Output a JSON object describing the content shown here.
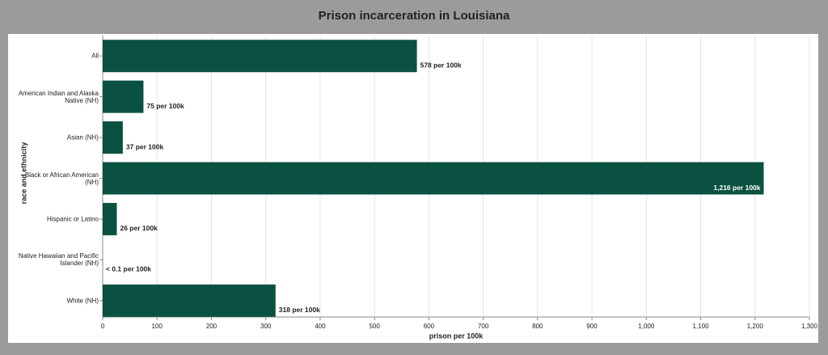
{
  "chart_data": {
    "type": "bar",
    "orientation": "horizontal",
    "title": "Prison incarceration in Louisiana",
    "x_label": "prison per 100k",
    "y_label": "race and ethnicity",
    "categories": [
      "All",
      "American Indian and Alaska Native (NH)",
      "Asian (NH)",
      "Black or African American (NH)",
      "Hispanic or Latino",
      "Native Hawaiian and Pacific Islander (NH)",
      "White (NH)"
    ],
    "values": [
      578,
      75,
      37,
      1216,
      26,
      0,
      318
    ],
    "value_labels": [
      "578 per 100k",
      "75 per 100k",
      "37 per 100k",
      "1,216 per 100k",
      "26 per 100k",
      "< 0.1 per 100k",
      "318 per 100k"
    ],
    "color": "#0b5142",
    "xlim": [
      0,
      1300
    ],
    "xticks": [
      0,
      100,
      200,
      300,
      400,
      500,
      600,
      700,
      800,
      900,
      {
        "value": 1000,
        "label": "1,000"
      },
      {
        "value": 1100,
        "label": "1,100"
      },
      {
        "value": 1200,
        "label": "1,200"
      },
      {
        "value": 1300,
        "label": "1,300"
      }
    ],
    "grid": true
  }
}
